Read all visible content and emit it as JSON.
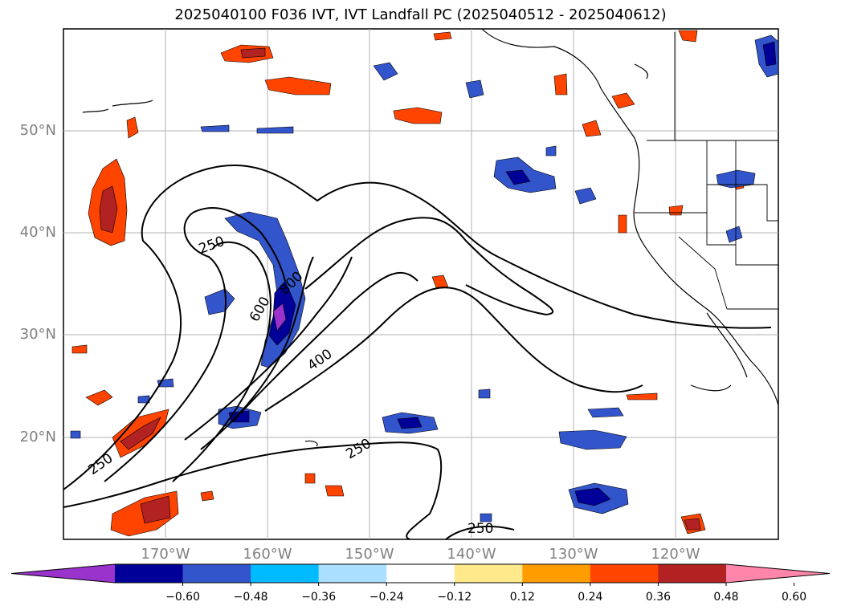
{
  "title": "2025040100 F036 IVT, IVT Landfall PC (2025040512 - 2025040612)",
  "lat_labels": [
    "50°N",
    "40°N",
    "30°N",
    "20°N"
  ],
  "lon_labels": [
    "170°W",
    "160°W",
    "150°W",
    "140°W",
    "130°W",
    "120°W"
  ],
  "contour_labels": [
    "250",
    "800",
    "600",
    "400",
    "250",
    "250",
    "250"
  ],
  "colorbar": {
    "colors": [
      "#9933cc",
      "#000099",
      "#3355cc",
      "#00bbff",
      "#aadfff",
      "#ffffff",
      "#ffe98a",
      "#ff9d00",
      "#ff4400",
      "#b22222",
      "#ff85aa"
    ],
    "under": "#9933cc",
    "over": "#ff85aa",
    "tick_labels": [
      "−0.60",
      "−0.48",
      "−0.36",
      "−0.24",
      "−0.12",
      "0.12",
      "0.24",
      "0.36",
      "0.48",
      "0.60"
    ]
  },
  "colors": {
    "blue_anom": "#3355cc",
    "dark_blue": "#000099",
    "cyan": "#00bbff",
    "orange": "#ff4400",
    "dark_red": "#b22222",
    "yellow": "#ffe98a"
  }
}
